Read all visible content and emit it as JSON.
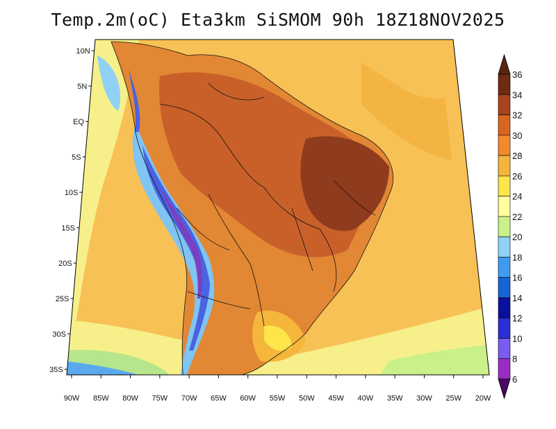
{
  "title": "Temp.2m(oC) Eta3km SiSMOM 90h 18Z18NOV2025",
  "lat_labels": [
    "10N",
    "5N",
    "EQ",
    "5S",
    "10S",
    "15S",
    "20S",
    "25S",
    "30S",
    "35S"
  ],
  "lon_labels": [
    "90W",
    "85W",
    "80W",
    "75W",
    "70W",
    "65W",
    "60W",
    "55W",
    "50W",
    "45W",
    "40W",
    "35W",
    "30W",
    "25W",
    "20W"
  ],
  "colorbar": {
    "labels": [
      "6",
      "8",
      "10",
      "12",
      "14",
      "16",
      "18",
      "20",
      "22",
      "24",
      "26",
      "28",
      "30",
      "32",
      "34",
      "36"
    ],
    "colors": [
      "#5b0a8a",
      "#9a2bc4",
      "#7a5bf0",
      "#2b2fd6",
      "#0b0f9e",
      "#1565d8",
      "#3f9bf0",
      "#8fd2f5",
      "#c9f08a",
      "#ffffa0",
      "#fde54a",
      "#f6b53b",
      "#f28a2b",
      "#d9661f",
      "#a8431a",
      "#6e2a12"
    ],
    "top_color": "#5a2410",
    "bottom_color": "#4b0866"
  },
  "regions": [
    {
      "name": "ocean-base",
      "color": "#f8c155"
    },
    {
      "name": "continent",
      "color": "#e28734"
    },
    {
      "name": "amazon-hot",
      "color": "#c9602a"
    },
    {
      "name": "northeast-hot",
      "color": "#8f3b1e"
    },
    {
      "name": "south-cool",
      "color": "#f7f08a"
    },
    {
      "name": "andes-cold",
      "color": "#4a63e0"
    },
    {
      "name": "andes-snow",
      "color": "#7b3fc0"
    },
    {
      "name": "coastal-cool",
      "color": "#cde98a"
    }
  ]
}
